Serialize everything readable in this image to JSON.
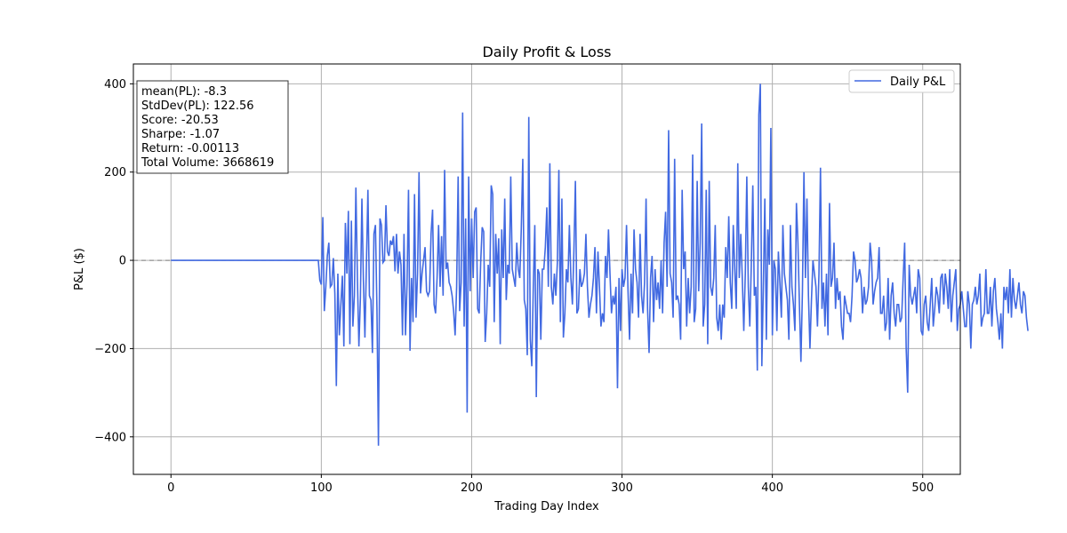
{
  "chart_data": {
    "type": "line",
    "title": "Daily Profit & Loss",
    "xlabel": "Trading Day Index",
    "ylabel": "P&L ($)",
    "xlim": [
      -25,
      525
    ],
    "ylim": [
      -485,
      445
    ],
    "xticks": [
      0,
      100,
      200,
      300,
      400,
      500
    ],
    "yticks": [
      -400,
      -200,
      0,
      200,
      400
    ],
    "xtick_labels": [
      "0",
      "100",
      "200",
      "300",
      "400",
      "500"
    ],
    "ytick_labels": [
      "−400",
      "−200",
      "0",
      "200",
      "400"
    ],
    "grid": true,
    "legend": {
      "placement": "top-right",
      "entries": [
        "Daily P&L"
      ]
    },
    "reference_line": {
      "y": 0,
      "style": "dashed",
      "color": "#808080"
    },
    "stats": {
      "lines": [
        "mean(PL): -8.3",
        "StdDev(PL): 122.56",
        "Score: -20.53",
        "Sharpe: -1.07",
        "Return: -0.00113",
        "Total Volume: 3668619"
      ]
    },
    "series": [
      {
        "name": "Daily P&L",
        "color": "#4169e1",
        "x_start": 0,
        "x_step": 1,
        "values": [
          0,
          0,
          0,
          0,
          0,
          0,
          0,
          0,
          0,
          0,
          0,
          0,
          0,
          0,
          0,
          0,
          0,
          0,
          0,
          0,
          0,
          0,
          0,
          0,
          0,
          0,
          0,
          0,
          0,
          0,
          0,
          0,
          0,
          0,
          0,
          0,
          0,
          0,
          0,
          0,
          0,
          0,
          0,
          0,
          0,
          0,
          0,
          0,
          0,
          0,
          0,
          0,
          0,
          0,
          0,
          0,
          0,
          0,
          0,
          0,
          0,
          0,
          0,
          0,
          0,
          0,
          0,
          0,
          0,
          0,
          0,
          0,
          0,
          0,
          0,
          0,
          0,
          0,
          0,
          0,
          0,
          0,
          0,
          0,
          0,
          0,
          0,
          0,
          0,
          0,
          0,
          0,
          0,
          0,
          0,
          0,
          0,
          0,
          0,
          -45,
          -55,
          98,
          -115,
          -60,
          10,
          40,
          -60,
          -55,
          5,
          -75,
          -285,
          -30,
          -170,
          -100,
          -35,
          -195,
          85,
          -30,
          112,
          -190,
          90,
          -150,
          -80,
          165,
          -40,
          -195,
          -85,
          140,
          -45,
          -175,
          -10,
          160,
          -80,
          -90,
          -210,
          60,
          80,
          -110,
          -420,
          95,
          80,
          -5,
          0,
          125,
          20,
          10,
          45,
          35,
          55,
          -25,
          60,
          -30,
          20,
          -10,
          -170,
          60,
          -170,
          -55,
          160,
          -205,
          -40,
          -140,
          150,
          -130,
          -30,
          200,
          -75,
          -30,
          0,
          30,
          -70,
          -80,
          -70,
          60,
          115,
          -100,
          -120,
          -40,
          80,
          -60,
          55,
          -80,
          205,
          -20,
          -5,
          -50,
          -60,
          -80,
          -115,
          -170,
          -60,
          190,
          -115,
          -50,
          335,
          -150,
          95,
          -345,
          190,
          -70,
          95,
          -40,
          110,
          120,
          -110,
          -120,
          -5,
          75,
          65,
          -185,
          -120,
          -10,
          -60,
          170,
          150,
          -140,
          60,
          -30,
          50,
          -190,
          70,
          -40,
          140,
          -90,
          -10,
          -30,
          190,
          -20,
          -40,
          -60,
          40,
          -20,
          -40,
          70,
          230,
          -90,
          -110,
          -215,
          325,
          -180,
          -240,
          -60,
          80,
          -310,
          -20,
          -30,
          -180,
          -20,
          -20,
          30,
          120,
          -60,
          220,
          -60,
          -100,
          -30,
          -80,
          -5,
          205,
          -140,
          140,
          -175,
          -120,
          -20,
          -50,
          80,
          -40,
          -100,
          20,
          180,
          -120,
          -110,
          -20,
          -60,
          -50,
          -30,
          60,
          -60,
          -130,
          -100,
          -80,
          -40,
          30,
          -120,
          20,
          -60,
          -150,
          -120,
          -140,
          10,
          -40,
          70,
          -30,
          -120,
          -80,
          -100,
          -60,
          -290,
          -40,
          -160,
          -20,
          -60,
          -40,
          80,
          -70,
          -180,
          -30,
          -120,
          70,
          -20,
          -50,
          -130,
          60,
          -80,
          -120,
          -50,
          140,
          -110,
          -210,
          -40,
          10,
          -140,
          -20,
          -90,
          -50,
          -110,
          0,
          -120,
          40,
          110,
          -60,
          295,
          -30,
          -50,
          -130,
          230,
          -90,
          -80,
          -100,
          -180,
          160,
          -20,
          20,
          -150,
          -40,
          -120,
          -60,
          240,
          -140,
          -110,
          180,
          -70,
          40,
          310,
          -150,
          -100,
          160,
          -190,
          180,
          -60,
          -80,
          -40,
          80,
          -130,
          -160,
          -100,
          -180,
          -100,
          -130,
          30,
          -40,
          100,
          -50,
          -110,
          80,
          -20,
          -110,
          220,
          -40,
          60,
          -40,
          -160,
          -30,
          190,
          -60,
          -150,
          -10,
          170,
          -80,
          -60,
          -250,
          330,
          400,
          -240,
          -60,
          140,
          -180,
          70,
          -10,
          300,
          -170,
          0,
          -20,
          -160,
          20,
          -50,
          -130,
          80,
          -30,
          -60,
          -90,
          -180,
          80,
          -60,
          -100,
          -160,
          130,
          40,
          -100,
          -230,
          -70,
          200,
          -40,
          140,
          -80,
          -200,
          -90,
          0,
          -30,
          -60,
          -150,
          -30,
          210,
          -110,
          -50,
          -150,
          -30,
          -170,
          130,
          -60,
          -40,
          40,
          -110,
          -40,
          -90,
          -70,
          -150,
          -180,
          -80,
          -100,
          -120,
          -120,
          -140,
          -80,
          20,
          0,
          -50,
          -40,
          -20,
          -40,
          -120,
          -60,
          -100,
          -90,
          -60,
          40,
          0,
          -100,
          -70,
          -50,
          -40,
          30,
          -120,
          -120,
          -80,
          -160,
          -140,
          -40,
          -180,
          -80,
          -50,
          -120,
          -150,
          -100,
          -100,
          -140,
          -130,
          -40,
          40,
          -200,
          -300,
          -10,
          -80,
          -100,
          -80,
          -60,
          -120,
          -20,
          -40,
          -160,
          -170,
          -100,
          -80,
          -140,
          -160,
          -100,
          -40,
          -150,
          -110,
          -60,
          -80,
          -120,
          -40,
          -30,
          -100,
          -30,
          -60,
          -110,
          -20,
          -140,
          -80,
          -50,
          -20,
          -160,
          -110,
          -100,
          -70,
          -110,
          -150,
          -150,
          -70,
          -100,
          -200,
          -100,
          -90,
          -60,
          -100,
          -80,
          -30,
          -150,
          -130,
          -120,
          -20,
          -120,
          -120,
          -60,
          -150,
          -70,
          -40,
          -110,
          -140,
          -180,
          -120,
          -200,
          -60,
          -90,
          -60,
          -120,
          -20,
          -130,
          -40,
          -90,
          -110,
          -80,
          -50,
          -100,
          -120,
          -70,
          -80,
          -130,
          -160
        ]
      }
    ]
  }
}
